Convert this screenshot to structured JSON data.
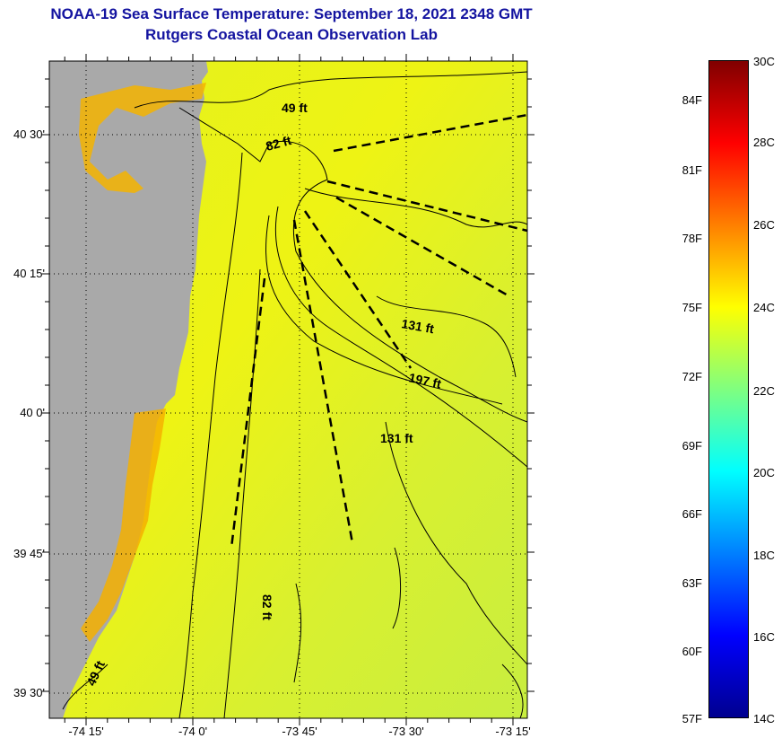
{
  "title": "NOAA-19 Sea Surface Temperature:  September 18, 2021 2348 GMT",
  "subtitle": "Rutgers Coastal Ocean Observation Lab",
  "map": {
    "latitude_labels": [
      "40 30'",
      "40 15'",
      "40 0'",
      "39 45'",
      "39 30'"
    ],
    "longitude_labels": [
      "-74 15'",
      "-74 0'",
      "-73 45'",
      "-73 30'",
      "-73 15'"
    ],
    "depth_labels": [
      "49 ft",
      "82 ft",
      "131 ft",
      "197 ft",
      "131 ft",
      "82 ft",
      "49 ft"
    ],
    "colors": {
      "land": "#a9a9a9",
      "sea": "#e8f020",
      "coastal_warm": "#f5b000",
      "contour": "#000000"
    }
  },
  "colorbar": {
    "fahrenheit_labels": [
      "84F",
      "81F",
      "78F",
      "75F",
      "72F",
      "69F",
      "66F",
      "63F",
      "60F",
      "57F"
    ],
    "celsius_labels": [
      "30C",
      "28C",
      "26C",
      "24C",
      "22C",
      "20C",
      "18C",
      "16C",
      "14C"
    ],
    "range_c": [
      14,
      30
    ],
    "colormap": "jet"
  }
}
